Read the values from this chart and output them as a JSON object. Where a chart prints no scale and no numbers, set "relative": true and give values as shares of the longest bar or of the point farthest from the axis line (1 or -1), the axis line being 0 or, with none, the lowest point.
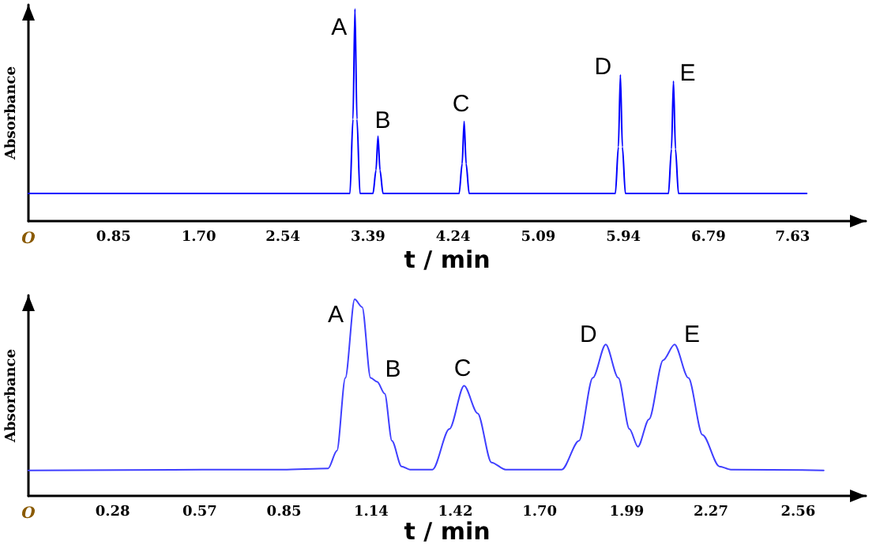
{
  "chart_data": [
    {
      "type": "line",
      "relative": true,
      "xlabel": "t / min",
      "ylabel": "Absorbance",
      "xlim": [
        0,
        8.36
      ],
      "xticks": [
        0.85,
        {
          "value": 1.7,
          "label": "1.70"
        },
        2.54,
        3.39,
        4.24,
        5.09,
        5.94,
        6.79,
        7.63
      ],
      "grid": false,
      "marker": "none",
      "line_style": "solid",
      "series": [
        {
          "color": "#0000ff",
          "x": [
            0,
            3.21,
            3.24,
            3.26,
            3.28,
            3.31,
            3.44,
            3.47,
            3.49,
            3.51,
            3.54,
            4.3,
            4.33,
            4.35,
            4.37,
            4.4,
            5.86,
            5.89,
            5.91,
            5.93,
            5.96,
            6.39,
            6.42,
            6.44,
            6.46,
            6.49,
            7.77
          ],
          "values": [
            0.13,
            0.13,
            0.48,
            1.0,
            0.48,
            0.13,
            0.13,
            0.24,
            0.4,
            0.24,
            0.13,
            0.13,
            0.27,
            0.47,
            0.27,
            0.13,
            0.13,
            0.35,
            0.69,
            0.35,
            0.13,
            0.13,
            0.34,
            0.66,
            0.34,
            0.13,
            0.13
          ]
        }
      ],
      "annotations": [
        "O",
        {
          "text": "A",
          "x": 3.26,
          "y": 1.0
        },
        {
          "text": "B",
          "x": 3.49,
          "y": 0.4
        },
        {
          "text": "C",
          "x": 4.35,
          "y": 0.47
        },
        {
          "text": "D",
          "x": 5.91,
          "y": 0.69
        },
        {
          "text": "E",
          "x": 6.44,
          "y": 0.66
        }
      ]
    },
    {
      "type": "line",
      "relative": true,
      "xlabel": "t / min",
      "ylabel": "Absorbance",
      "xlim": [
        0,
        2.785
      ],
      "xticks": [
        0.28,
        0.57,
        0.85,
        1.14,
        1.42,
        {
          "value": 1.7,
          "label": "1.70"
        },
        1.99,
        2.27,
        2.56
      ],
      "grid": false,
      "marker": "none",
      "line_style": "solid",
      "series": [
        {
          "color": "#3f3fff",
          "x": [
            0,
            0.846,
            0.997,
            1.026,
            1.054,
            1.085,
            1.11,
            1.138,
            1.16,
            1.185,
            1.209,
            1.241,
            1.269,
            1.344,
            1.4,
            1.449,
            1.494,
            1.54,
            1.587,
            1.774,
            1.831,
            1.877,
            1.92,
            1.962,
            1.999,
            2.027,
            2.064,
            2.111,
            2.149,
            2.195,
            2.242,
            2.298,
            2.336,
            2.645
          ],
          "values": [
            0.13,
            0.134,
            0.14,
            0.23,
            0.6,
            1.0,
            0.96,
            0.6,
            0.58,
            0.52,
            0.28,
            0.15,
            0.134,
            0.134,
            0.34,
            0.56,
            0.42,
            0.17,
            0.134,
            0.134,
            0.28,
            0.6,
            0.77,
            0.6,
            0.34,
            0.25,
            0.39,
            0.69,
            0.77,
            0.6,
            0.31,
            0.15,
            0.134,
            0.13
          ]
        }
      ],
      "annotations": [
        "O",
        {
          "text": "A",
          "x": 1.085,
          "y": 1.0
        },
        {
          "text": "B",
          "x": 1.16,
          "y": 0.58
        },
        {
          "text": "C",
          "x": 1.449,
          "y": 0.56
        },
        {
          "text": "D",
          "x": 1.92,
          "y": 0.77
        },
        {
          "text": "E",
          "x": 2.149,
          "y": 0.77
        }
      ]
    }
  ]
}
